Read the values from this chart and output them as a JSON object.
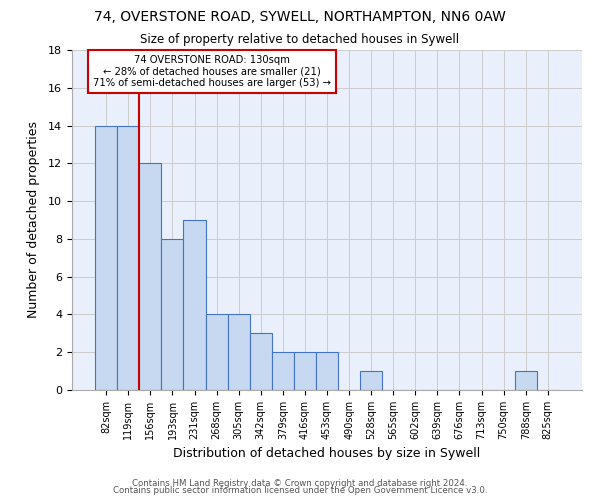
{
  "title1": "74, OVERSTONE ROAD, SYWELL, NORTHAMPTON, NN6 0AW",
  "title2": "Size of property relative to detached houses in Sywell",
  "xlabel": "Distribution of detached houses by size in Sywell",
  "ylabel": "Number of detached properties",
  "footer1": "Contains HM Land Registry data © Crown copyright and database right 2024.",
  "footer2": "Contains public sector information licensed under the Open Government Licence v3.0.",
  "bin_labels": [
    "82sqm",
    "119sqm",
    "156sqm",
    "193sqm",
    "231sqm",
    "268sqm",
    "305sqm",
    "342sqm",
    "379sqm",
    "416sqm",
    "453sqm",
    "490sqm",
    "528sqm",
    "565sqm",
    "602sqm",
    "639sqm",
    "676sqm",
    "713sqm",
    "750sqm",
    "788sqm",
    "825sqm"
  ],
  "bar_heights": [
    14,
    14,
    12,
    8,
    9,
    4,
    4,
    3,
    2,
    2,
    2,
    0,
    1,
    0,
    0,
    0,
    0,
    0,
    0,
    1,
    0
  ],
  "bar_color": "#c6d9f0",
  "bar_edge_color": "#4472c4",
  "grid_color": "#cccccc",
  "background_color": "#eaf0fb",
  "annotation_box_color": "#ffffff",
  "annotation_border_color": "#cc0000",
  "red_line_color": "#cc0000",
  "annotation_text_line1": "74 OVERSTONE ROAD: 130sqm",
  "annotation_text_line2": "← 28% of detached houses are smaller (21)",
  "annotation_text_line3": "71% of semi-detached houses are larger (53) →",
  "ylim": [
    0,
    18
  ],
  "yticks": [
    0,
    2,
    4,
    6,
    8,
    10,
    12,
    14,
    16,
    18
  ]
}
